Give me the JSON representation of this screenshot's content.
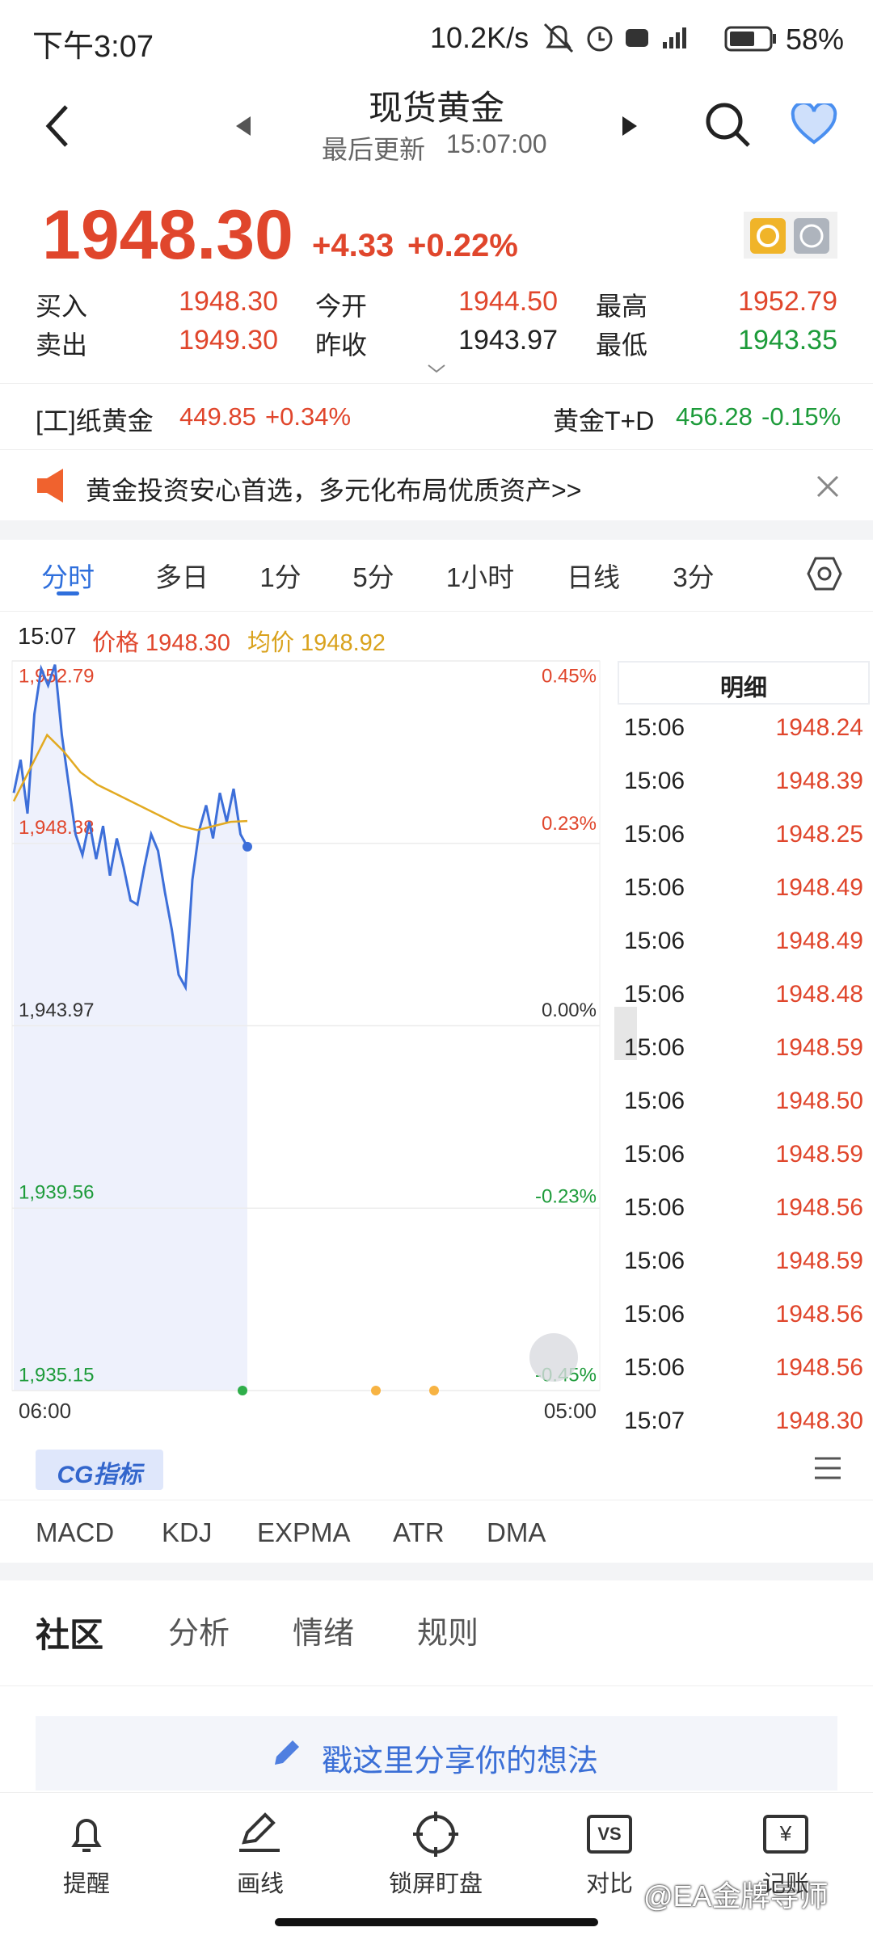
{
  "status": {
    "time": "下午3:07",
    "speed": "10.2K/s",
    "battery": "58%"
  },
  "header": {
    "title": "现货黄金",
    "update_label": "最后更新",
    "update_time": "15:07:00"
  },
  "quote": {
    "price": "1948.30",
    "change": "+4.33",
    "change_pct": "+0.22%",
    "stats": [
      {
        "label": "买入",
        "value": "1948.30"
      },
      {
        "label": "今开",
        "value": "1944.50"
      },
      {
        "label": "最高",
        "value": "1952.79"
      },
      {
        "label": "卖出",
        "value": "1949.30"
      },
      {
        "label": "昨收",
        "value": "1943.97"
      },
      {
        "label": "最低",
        "value": "1943.35"
      }
    ]
  },
  "related": [
    {
      "name": "[工]纸黄金",
      "value": "449.85",
      "change": "+0.34%"
    },
    {
      "name": "黄金T+D",
      "value": "456.28",
      "change": "-0.15%"
    }
  ],
  "banner": "黄金投资安心首选，多元化布局优质资产>>",
  "tabs": [
    "分时",
    "多日",
    "1分",
    "5分",
    "1小时",
    "日线",
    "3分"
  ],
  "chart_data": {
    "type": "line",
    "time": "15:07",
    "price_label": "价格 1948.30",
    "avg_label": "均价 1948.92",
    "series": [
      {
        "color": "#3d6fd9",
        "values": [
          1949.6,
          1950.4,
          1949.1,
          1951.5,
          1952.6,
          1952.2,
          1952.7,
          1951.0,
          1949.8,
          1948.6,
          1948.1,
          1948.9,
          1948.0,
          1948.8,
          1947.6,
          1948.5,
          1947.8,
          1947.0,
          1946.9,
          1947.8,
          1948.6,
          1948.2,
          1947.2,
          1946.3,
          1945.2,
          1944.9,
          1947.5,
          1948.7,
          1949.3,
          1948.5,
          1949.6,
          1948.9,
          1949.7,
          1948.6,
          1948.3
        ]
      },
      {
        "color": "#e2aa22",
        "values": [
          1949.4,
          1950.2,
          1951.0,
          1950.6,
          1950.1,
          1949.8,
          1949.6,
          1949.4,
          1949.2,
          1949.0,
          1948.8,
          1948.7,
          1948.8,
          1948.9,
          1948.92
        ]
      }
    ],
    "ylim": [
      1935.15,
      1952.79
    ],
    "yticks": [
      {
        "value": 1935.15,
        "label": "1,935.15"
      },
      {
        "value": 1939.56,
        "label": "1,939.56"
      },
      {
        "value": 1943.97,
        "label": "1,943.97"
      },
      {
        "value": 1948.38,
        "label": "1,948.38"
      },
      {
        "value": 1952.79,
        "label": "1,952.79"
      }
    ],
    "y2lim": [
      -0.45,
      0.45
    ],
    "y2ticks": [
      {
        "value": -0.45,
        "label": "-0.45%"
      },
      {
        "value": -0.23,
        "label": "-0.23%"
      },
      {
        "value": 0,
        "label": "0.00%"
      },
      {
        "value": 0.23,
        "label": "0.23%"
      },
      {
        "value": 0.45,
        "label": "0.45%"
      }
    ],
    "x_labels": [
      "06:00",
      "05:00"
    ],
    "grid": true
  },
  "details": {
    "title": "明细",
    "rows": [
      [
        "15:06",
        "1948.24"
      ],
      [
        "15:06",
        "1948.39"
      ],
      [
        "15:06",
        "1948.25"
      ],
      [
        "15:06",
        "1948.49"
      ],
      [
        "15:06",
        "1948.49"
      ],
      [
        "15:06",
        "1948.48"
      ],
      [
        "15:06",
        "1948.59"
      ],
      [
        "15:06",
        "1948.50"
      ],
      [
        "15:06",
        "1948.59"
      ],
      [
        "15:06",
        "1948.56"
      ],
      [
        "15:06",
        "1948.59"
      ],
      [
        "15:06",
        "1948.56"
      ],
      [
        "15:06",
        "1948.56"
      ],
      [
        "15:07",
        "1948.30"
      ]
    ]
  },
  "indicator_badge": "CG指标",
  "indicators": [
    "MACD",
    "KDJ",
    "EXPMA",
    "ATR",
    "DMA"
  ],
  "community_tabs": [
    "社区",
    "分析",
    "情绪",
    "规则"
  ],
  "input_placeholder": "戳这里分享你的想法",
  "nav": [
    "提醒",
    "画线",
    "锁屏盯盘",
    "对比",
    "记账"
  ],
  "watermark": "@EA金牌导师"
}
